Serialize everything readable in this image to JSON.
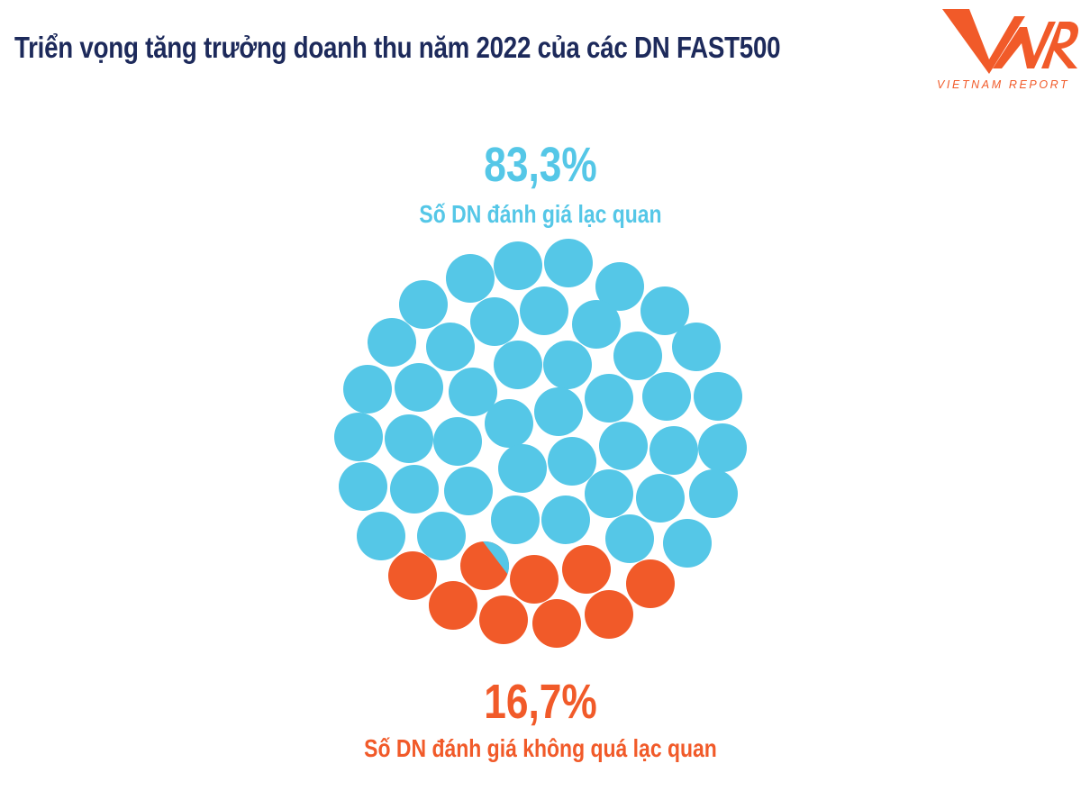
{
  "title": "Triển vọng tăng trưởng doanh thu năm 2022 của các DN FAST500",
  "logo": {
    "mark": "VNR",
    "text": "VIETNAM REPORT",
    "color": "#f15a29"
  },
  "chart_data": {
    "type": "pie",
    "style": "circle-cluster",
    "series": [
      {
        "label": "Số DN đánh giá lạc quan",
        "value": 83.3,
        "value_label": "83,3%",
        "color": "#55c7e7"
      },
      {
        "label": "Số DN đánh giá không quá lạc quan",
        "value": 16.7,
        "value_label": "16,7%",
        "color": "#f15a29"
      }
    ]
  }
}
